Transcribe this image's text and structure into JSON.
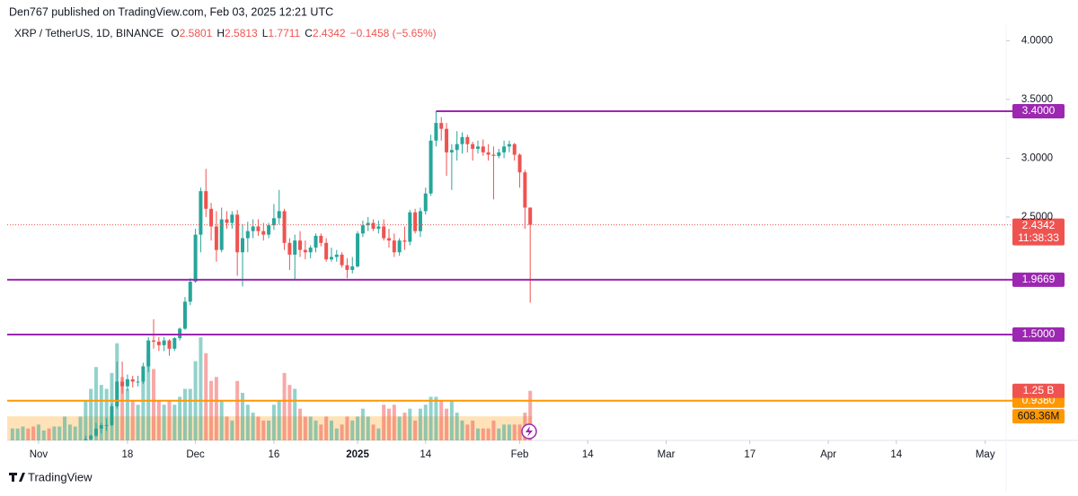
{
  "chart_data": {
    "type": "candlestick",
    "header": "Den767 published on TradingView.com, Feb 03, 2025 12:21 UTC",
    "symbol": "XRP / TetherUS, 1D, BINANCE",
    "ohlc_prefixes": [
      "O",
      "H",
      "L",
      "C"
    ],
    "change_label": "−0.1458 (−5.65%)",
    "x": [
      "2024-10-27",
      "2024-10-28",
      "2024-10-29",
      "2024-10-30",
      "2024-10-31",
      "2024-11-01",
      "2024-11-02",
      "2024-11-03",
      "2024-11-04",
      "2024-11-05",
      "2024-11-06",
      "2024-11-07",
      "2024-11-08",
      "2024-11-09",
      "2024-11-10",
      "2024-11-11",
      "2024-11-12",
      "2024-11-13",
      "2024-11-14",
      "2024-11-15",
      "2024-11-16",
      "2024-11-17",
      "2024-11-18",
      "2024-11-19",
      "2024-11-20",
      "2024-11-21",
      "2024-11-22",
      "2024-11-23",
      "2024-11-24",
      "2024-11-25",
      "2024-11-26",
      "2024-11-27",
      "2024-11-28",
      "2024-11-29",
      "2024-11-30",
      "2024-12-01",
      "2024-12-02",
      "2024-12-03",
      "2024-12-04",
      "2024-12-05",
      "2024-12-06",
      "2024-12-07",
      "2024-12-08",
      "2024-12-09",
      "2024-12-10",
      "2024-12-11",
      "2024-12-12",
      "2024-12-13",
      "2024-12-14",
      "2024-12-15",
      "2024-12-16",
      "2024-12-17",
      "2024-12-18",
      "2024-12-19",
      "2024-12-20",
      "2024-12-21",
      "2024-12-22",
      "2024-12-23",
      "2024-12-24",
      "2024-12-25",
      "2024-12-26",
      "2024-12-27",
      "2024-12-28",
      "2024-12-29",
      "2024-12-30",
      "2024-12-31",
      "2025-01-01",
      "2025-01-02",
      "2025-01-03",
      "2025-01-04",
      "2025-01-05",
      "2025-01-06",
      "2025-01-07",
      "2025-01-08",
      "2025-01-09",
      "2025-01-10",
      "2025-01-11",
      "2025-01-12",
      "2025-01-13",
      "2025-01-14",
      "2025-01-15",
      "2025-01-16",
      "2025-01-17",
      "2025-01-18",
      "2025-01-19",
      "2025-01-20",
      "2025-01-21",
      "2025-01-22",
      "2025-01-23",
      "2025-01-24",
      "2025-01-25",
      "2025-01-26",
      "2025-01-27",
      "2025-01-28",
      "2025-01-29",
      "2025-01-30",
      "2025-01-31",
      "2025-02-01",
      "2025-02-02",
      "2025-02-03"
    ],
    "open": [
      0.52,
      0.52,
      0.52,
      0.52,
      0.51,
      0.5,
      0.51,
      0.51,
      0.5,
      0.5,
      0.51,
      0.55,
      0.56,
      0.56,
      0.6,
      0.61,
      0.64,
      0.7,
      0.73,
      0.73,
      0.89,
      1.1,
      1.06,
      1.12,
      1.1,
      1.1,
      1.23,
      1.45,
      1.44,
      1.41,
      1.45,
      1.38,
      1.47,
      1.55,
      1.78,
      1.95,
      2.35,
      2.72,
      2.57,
      2.42,
      2.22,
      2.48,
      2.45,
      2.52,
      2.2,
      2.32,
      2.38,
      2.42,
      2.38,
      2.35,
      2.43,
      2.49,
      2.55,
      2.28,
      2.18,
      2.3,
      2.22,
      2.2,
      2.24,
      2.34,
      2.28,
      2.14,
      2.16,
      2.18,
      2.09,
      2.05,
      2.08,
      2.36,
      2.43,
      2.45,
      2.4,
      2.42,
      2.32,
      2.3,
      2.2,
      2.3,
      2.29,
      2.54,
      2.38,
      2.55,
      2.7,
      3.15,
      3.3,
      3.25,
      3.05,
      3.07,
      3.12,
      3.18,
      3.12,
      3.08,
      3.1,
      3.05,
      3.03,
      3.02,
      3.05,
      3.1,
      3.12,
      3.03,
      2.88,
      2.5801
    ],
    "high": [
      0.53,
      0.53,
      0.53,
      0.52,
      0.52,
      0.52,
      0.52,
      0.52,
      0.51,
      0.52,
      0.56,
      0.56,
      0.57,
      0.6,
      0.64,
      0.65,
      0.75,
      0.75,
      0.79,
      0.91,
      1.27,
      1.27,
      1.16,
      1.15,
      1.15,
      1.26,
      1.48,
      1.63,
      1.48,
      1.48,
      1.46,
      1.48,
      1.56,
      1.82,
      1.98,
      2.4,
      2.75,
      2.91,
      2.62,
      2.55,
      2.58,
      2.55,
      2.55,
      2.56,
      2.44,
      2.46,
      2.48,
      2.48,
      2.45,
      2.45,
      2.61,
      2.73,
      2.57,
      2.32,
      2.35,
      2.38,
      2.3,
      2.26,
      2.36,
      2.36,
      2.32,
      2.24,
      2.22,
      2.2,
      2.15,
      2.16,
      2.38,
      2.47,
      2.5,
      2.48,
      2.47,
      2.48,
      2.4,
      2.36,
      2.32,
      2.42,
      2.56,
      2.57,
      2.58,
      2.75,
      3.2,
      3.4,
      3.35,
      3.3,
      3.12,
      3.23,
      3.22,
      3.2,
      3.14,
      3.15,
      3.16,
      3.12,
      3.1,
      3.08,
      3.15,
      3.15,
      3.13,
      3.04,
      2.9,
      2.5813
    ],
    "low": [
      0.51,
      0.51,
      0.51,
      0.51,
      0.5,
      0.5,
      0.5,
      0.49,
      0.49,
      0.5,
      0.51,
      0.54,
      0.55,
      0.56,
      0.58,
      0.58,
      0.63,
      0.66,
      0.68,
      0.72,
      0.87,
      1.0,
      1.02,
      1.05,
      1.06,
      1.08,
      1.18,
      1.38,
      1.36,
      1.36,
      1.32,
      1.36,
      1.45,
      1.54,
      1.75,
      1.94,
      2.2,
      2.5,
      2.3,
      2.12,
      2.2,
      2.4,
      2.4,
      2.0,
      1.91,
      2.2,
      2.32,
      2.34,
      2.3,
      2.32,
      2.39,
      2.44,
      2.22,
      2.05,
      1.96,
      2.16,
      2.14,
      2.15,
      2.2,
      2.25,
      2.12,
      2.12,
      2.12,
      2.07,
      1.98,
      2.02,
      2.07,
      2.33,
      2.38,
      2.38,
      2.36,
      2.3,
      2.24,
      2.16,
      2.17,
      2.22,
      2.26,
      2.36,
      2.33,
      2.52,
      2.68,
      3.1,
      3.15,
      2.85,
      2.73,
      2.98,
      3.04,
      3.05,
      2.98,
      3.04,
      3.02,
      2.98,
      2.65,
      3.0,
      3.0,
      3.05,
      2.98,
      2.75,
      2.4,
      1.7711
    ],
    "close": [
      0.52,
      0.52,
      0.52,
      0.51,
      0.5,
      0.51,
      0.51,
      0.5,
      0.5,
      0.51,
      0.55,
      0.56,
      0.56,
      0.6,
      0.61,
      0.64,
      0.7,
      0.73,
      0.73,
      0.89,
      1.1,
      1.06,
      1.12,
      1.1,
      1.1,
      1.23,
      1.45,
      1.44,
      1.41,
      1.45,
      1.38,
      1.47,
      1.55,
      1.78,
      1.95,
      2.35,
      2.72,
      2.57,
      2.42,
      2.22,
      2.48,
      2.45,
      2.52,
      2.2,
      2.32,
      2.38,
      2.42,
      2.38,
      2.35,
      2.43,
      2.49,
      2.55,
      2.28,
      2.18,
      2.3,
      2.22,
      2.2,
      2.24,
      2.34,
      2.28,
      2.14,
      2.16,
      2.18,
      2.09,
      2.05,
      2.08,
      2.36,
      2.43,
      2.45,
      2.4,
      2.42,
      2.32,
      2.3,
      2.2,
      2.3,
      2.29,
      2.54,
      2.38,
      2.55,
      2.7,
      3.15,
      3.3,
      3.25,
      3.05,
      3.07,
      3.12,
      3.18,
      3.12,
      3.08,
      3.1,
      3.05,
      3.03,
      3.02,
      3.05,
      3.1,
      3.12,
      3.03,
      2.88,
      2.58,
      2.4342
    ],
    "volume": [
      300000000.0,
      300000000.0,
      350000000.0,
      300000000.0,
      350000000.0,
      400000000.0,
      250000000.0,
      300000000.0,
      350000000.0,
      350000000.0,
      600000000.0,
      400000000.0,
      350000000.0,
      600000000.0,
      1000000000.0,
      1300000000.0,
      1850000000.0,
      1400000000.0,
      1300000000.0,
      1700000000.0,
      2450000000.0,
      1600000000.0,
      1300000000.0,
      1000000000.0,
      900000000.0,
      1500000000.0,
      2200000000.0,
      1800000000.0,
      1000000000.0,
      900000000.0,
      1000000000.0,
      900000000.0,
      1100000000.0,
      1300000000.0,
      1300000000.0,
      2000000000.0,
      2600000000.0,
      2200000000.0,
      1500000000.0,
      1600000000.0,
      1000000000.0,
      600000000.0,
      500000000.0,
      1500000000.0,
      1200000000.0,
      900000000.0,
      700000000.0,
      600000000.0,
      500000000.0,
      500000000.0,
      900000000.0,
      1000000000.0,
      1700000000.0,
      1400000000.0,
      1300000000.0,
      800000000.0,
      600000000.0,
      600000000.0,
      500000000.0,
      400000000.0,
      600000000.0,
      500000000.0,
      300000000.0,
      400000000.0,
      600000000.0,
      500000000.0,
      600000000.0,
      800000000.0,
      600000000.0,
      400000000.0,
      300000000.0,
      900000000.0,
      800000000.0,
      900000000.0,
      600000000.0,
      700000000.0,
      800000000.0,
      500000000.0,
      800000000.0,
      900000000.0,
      1100000000.0,
      1100000000.0,
      1000000000.0,
      800000000.0,
      1000000000.0,
      700000000.0,
      500000000.0,
      400000000.0,
      500000000.0,
      300000000.0,
      300000000.0,
      300000000.0,
      500000000.0,
      300000000.0,
      400000000.0,
      400000000.0,
      400000000.0,
      400000000.0,
      700000000.0,
      1250000000.0
    ],
    "volume_value_labels": [
      null,
      null,
      null,
      null,
      null,
      null,
      null,
      null,
      null,
      null,
      null,
      null,
      null,
      null,
      null,
      null,
      null,
      null,
      null,
      null,
      null,
      null,
      null,
      null,
      null,
      null,
      null,
      null,
      null,
      null,
      null,
      null,
      null,
      null,
      null,
      null,
      null,
      null,
      null,
      null,
      null,
      null,
      null,
      null,
      null,
      null,
      null,
      null,
      null,
      null,
      null,
      null,
      null,
      null,
      null,
      null,
      null,
      null,
      null,
      null,
      null,
      null,
      null,
      null,
      null,
      null,
      null,
      null,
      null,
      null,
      null,
      null,
      null,
      null,
      null,
      null,
      null,
      null,
      null,
      null,
      null,
      null,
      null,
      null,
      null,
      null,
      null,
      null,
      null,
      null,
      null,
      null,
      null,
      null,
      null,
      null,
      null,
      null,
      null,
      "1.25 B"
    ],
    "up_color": "#26a69a",
    "down_color": "#ef5350",
    "xlim": [
      "2024-10-26",
      "2025-05-05"
    ],
    "xticks": [
      {
        "value": "2024-11-01",
        "label": "Nov"
      },
      {
        "value": "2024-11-18",
        "label": "18"
      },
      {
        "value": "2024-12-01",
        "label": "Dec"
      },
      {
        "value": "2024-12-16",
        "label": "16"
      },
      {
        "value": "2025-01-01",
        "label": "2025"
      },
      {
        "value": "2025-01-14",
        "label": "14"
      },
      {
        "value": "2025-02-01",
        "label": "Feb"
      },
      {
        "value": "2025-02-14",
        "label": "14"
      },
      {
        "value": "2025-03-01",
        "label": "Mar"
      },
      {
        "value": "2025-03-17",
        "label": "17"
      },
      {
        "value": "2025-04-01",
        "label": "Apr"
      },
      {
        "value": "2025-04-14",
        "label": "14"
      },
      {
        "value": "2025-05-01",
        "label": "May"
      }
    ],
    "ylim": [
      0.6,
      4.14
    ],
    "yticks": [
      {
        "value": 2.5,
        "label": "2.5000"
      },
      {
        "value": 3,
        "label": "3.0000"
      },
      {
        "value": 3.5,
        "label": "3.5000"
      },
      {
        "value": 4,
        "label": "4.0000"
      }
    ],
    "volume_ylim": [
      0,
      10500000000.0
    ],
    "levels": [
      {
        "value": 3.4,
        "label": "3.4000",
        "color": "#9c27b0"
      },
      {
        "value": 1.9669,
        "label": "1.9669",
        "color": "#9c27b0"
      },
      {
        "value": 1.5,
        "label": "1.5000",
        "color": "#9c27b0"
      },
      {
        "value": 0.938,
        "label": "0.9380",
        "color": "#ff9800"
      }
    ],
    "volume_ma": {
      "value": 608360000,
      "label": "608.36M"
    },
    "countdown": "11:38:33",
    "brand": "TradingView"
  }
}
